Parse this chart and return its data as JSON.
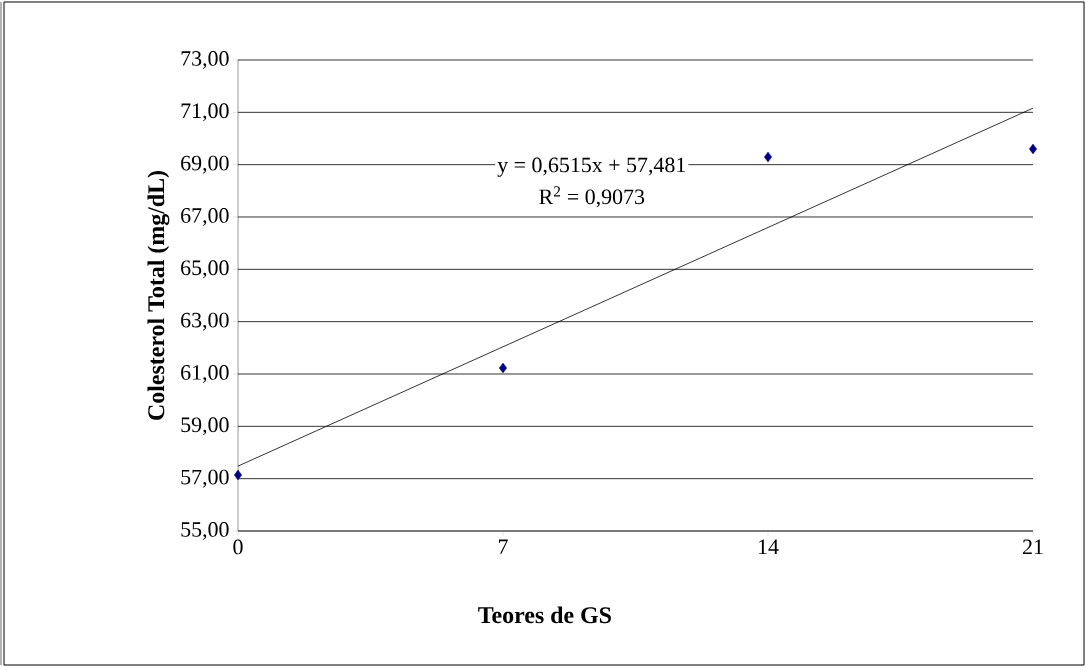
{
  "chart_data": {
    "type": "scatter",
    "xlabel": "Teores de GS",
    "ylabel": "Colesterol Total (mg/dL)",
    "x": [
      0,
      7,
      14,
      21
    ],
    "series": [
      {
        "color": "#000080",
        "marker": "diamond",
        "values": [
          57.14,
          61.23,
          69.29,
          69.6
        ]
      },
      {
        "type": "line",
        "marker": "none",
        "color": "#000000",
        "x": [
          0,
          21
        ],
        "values": [
          57.48,
          71.16
        ]
      }
    ],
    "xlim": [
      0,
      21
    ],
    "xticks": [
      0,
      7,
      14,
      21
    ],
    "ylim": [
      55,
      73
    ],
    "yticks": [
      {
        "value": 55,
        "label": "55,00"
      },
      {
        "value": 57,
        "label": "57,00"
      },
      {
        "value": 59,
        "label": "59,00"
      },
      {
        "value": 61,
        "label": "61,00"
      },
      {
        "value": 63,
        "label": "63,00"
      },
      {
        "value": 65,
        "label": "65,00"
      },
      {
        "value": 67,
        "label": "67,00"
      },
      {
        "value": 69,
        "label": "69,00"
      },
      {
        "value": 71,
        "label": "71,00"
      },
      {
        "value": 73,
        "label": "73,00"
      }
    ],
    "annotations": [
      "y = 0,6515x + 57,481",
      "R$^{2}$ = 0,9073"
    ],
    "grid": "y"
  }
}
